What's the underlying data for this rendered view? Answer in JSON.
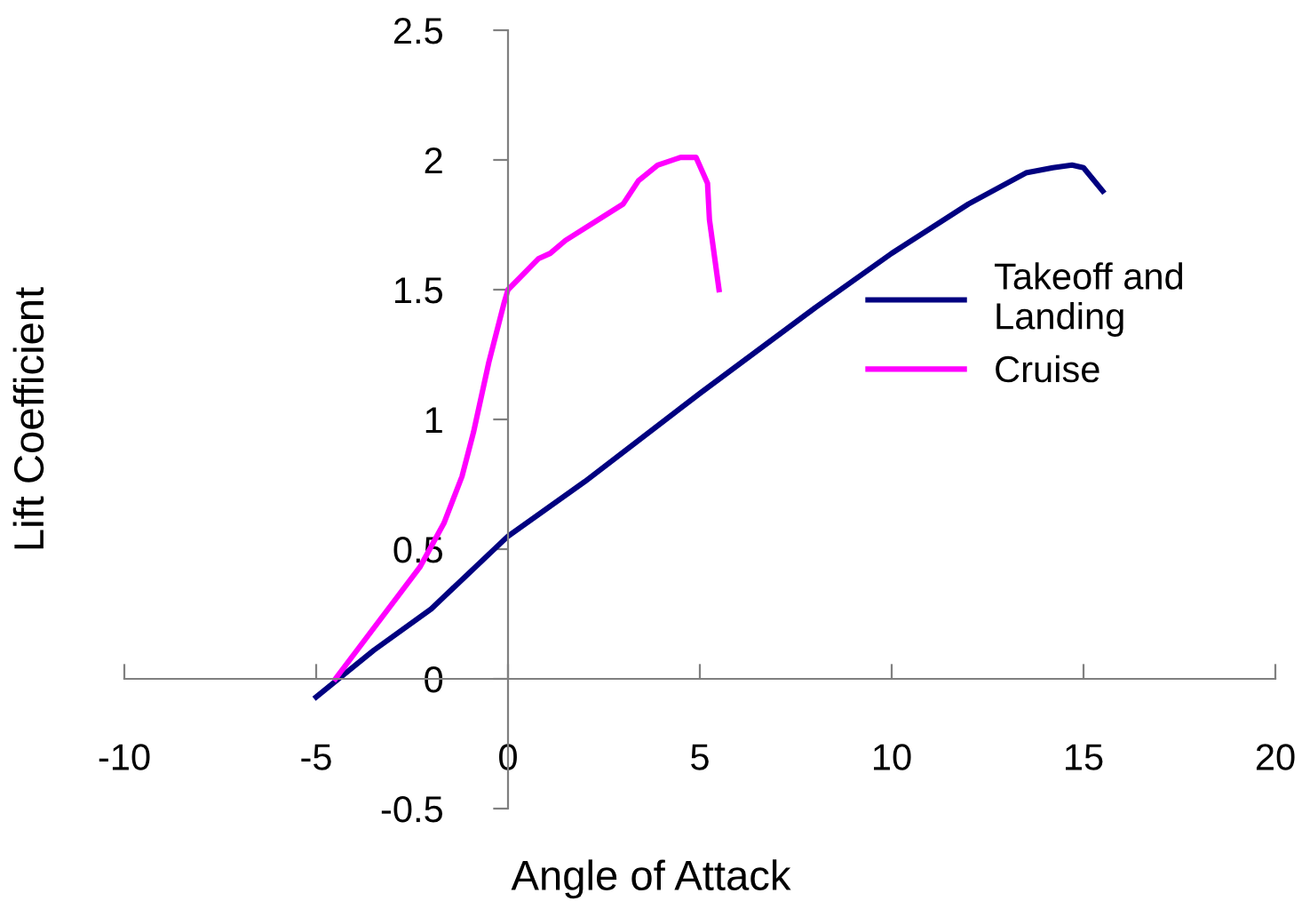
{
  "chart_data": {
    "type": "line",
    "xlabel": "Angle of Attack",
    "ylabel": "Lift Coefficient",
    "xlim": [
      -10,
      20
    ],
    "ylim": [
      -0.5,
      2.5
    ],
    "xticks": [
      -10,
      -5,
      0,
      5,
      10,
      15,
      20
    ],
    "yticks": [
      -0.5,
      0,
      0.5,
      1,
      1.5,
      2,
      2.5
    ],
    "grid": false,
    "legend": "right",
    "marker": "none",
    "line_style": "solid",
    "series": [
      {
        "name": "Takeoff and\nLanding",
        "color": "#000080",
        "x": [
          -5.0,
          -4.5,
          -3.5,
          -2,
          0,
          2,
          5,
          8,
          10,
          12,
          13.5,
          14.2,
          14.7,
          15.0,
          15.5
        ],
        "values": [
          -0.07,
          -0.01,
          0.11,
          0.27,
          0.55,
          0.76,
          1.1,
          1.43,
          1.64,
          1.83,
          1.95,
          1.97,
          1.98,
          1.97,
          1.88
        ]
      },
      {
        "name": "Cruise",
        "color": "#ff00ff",
        "x": [
          -4.5,
          -2.3,
          -1.67,
          -1.2,
          -0.9,
          -0.5,
          -0.1,
          0,
          0.8,
          1.1,
          1.5,
          3.0,
          3.4,
          3.9,
          4.5,
          4.9,
          5.2,
          5.25,
          5.5
        ],
        "values": [
          0,
          0.43,
          0.6,
          0.78,
          0.95,
          1.22,
          1.45,
          1.5,
          1.62,
          1.64,
          1.69,
          1.83,
          1.92,
          1.98,
          2.01,
          2.01,
          1.91,
          1.77,
          1.5
        ]
      }
    ]
  }
}
